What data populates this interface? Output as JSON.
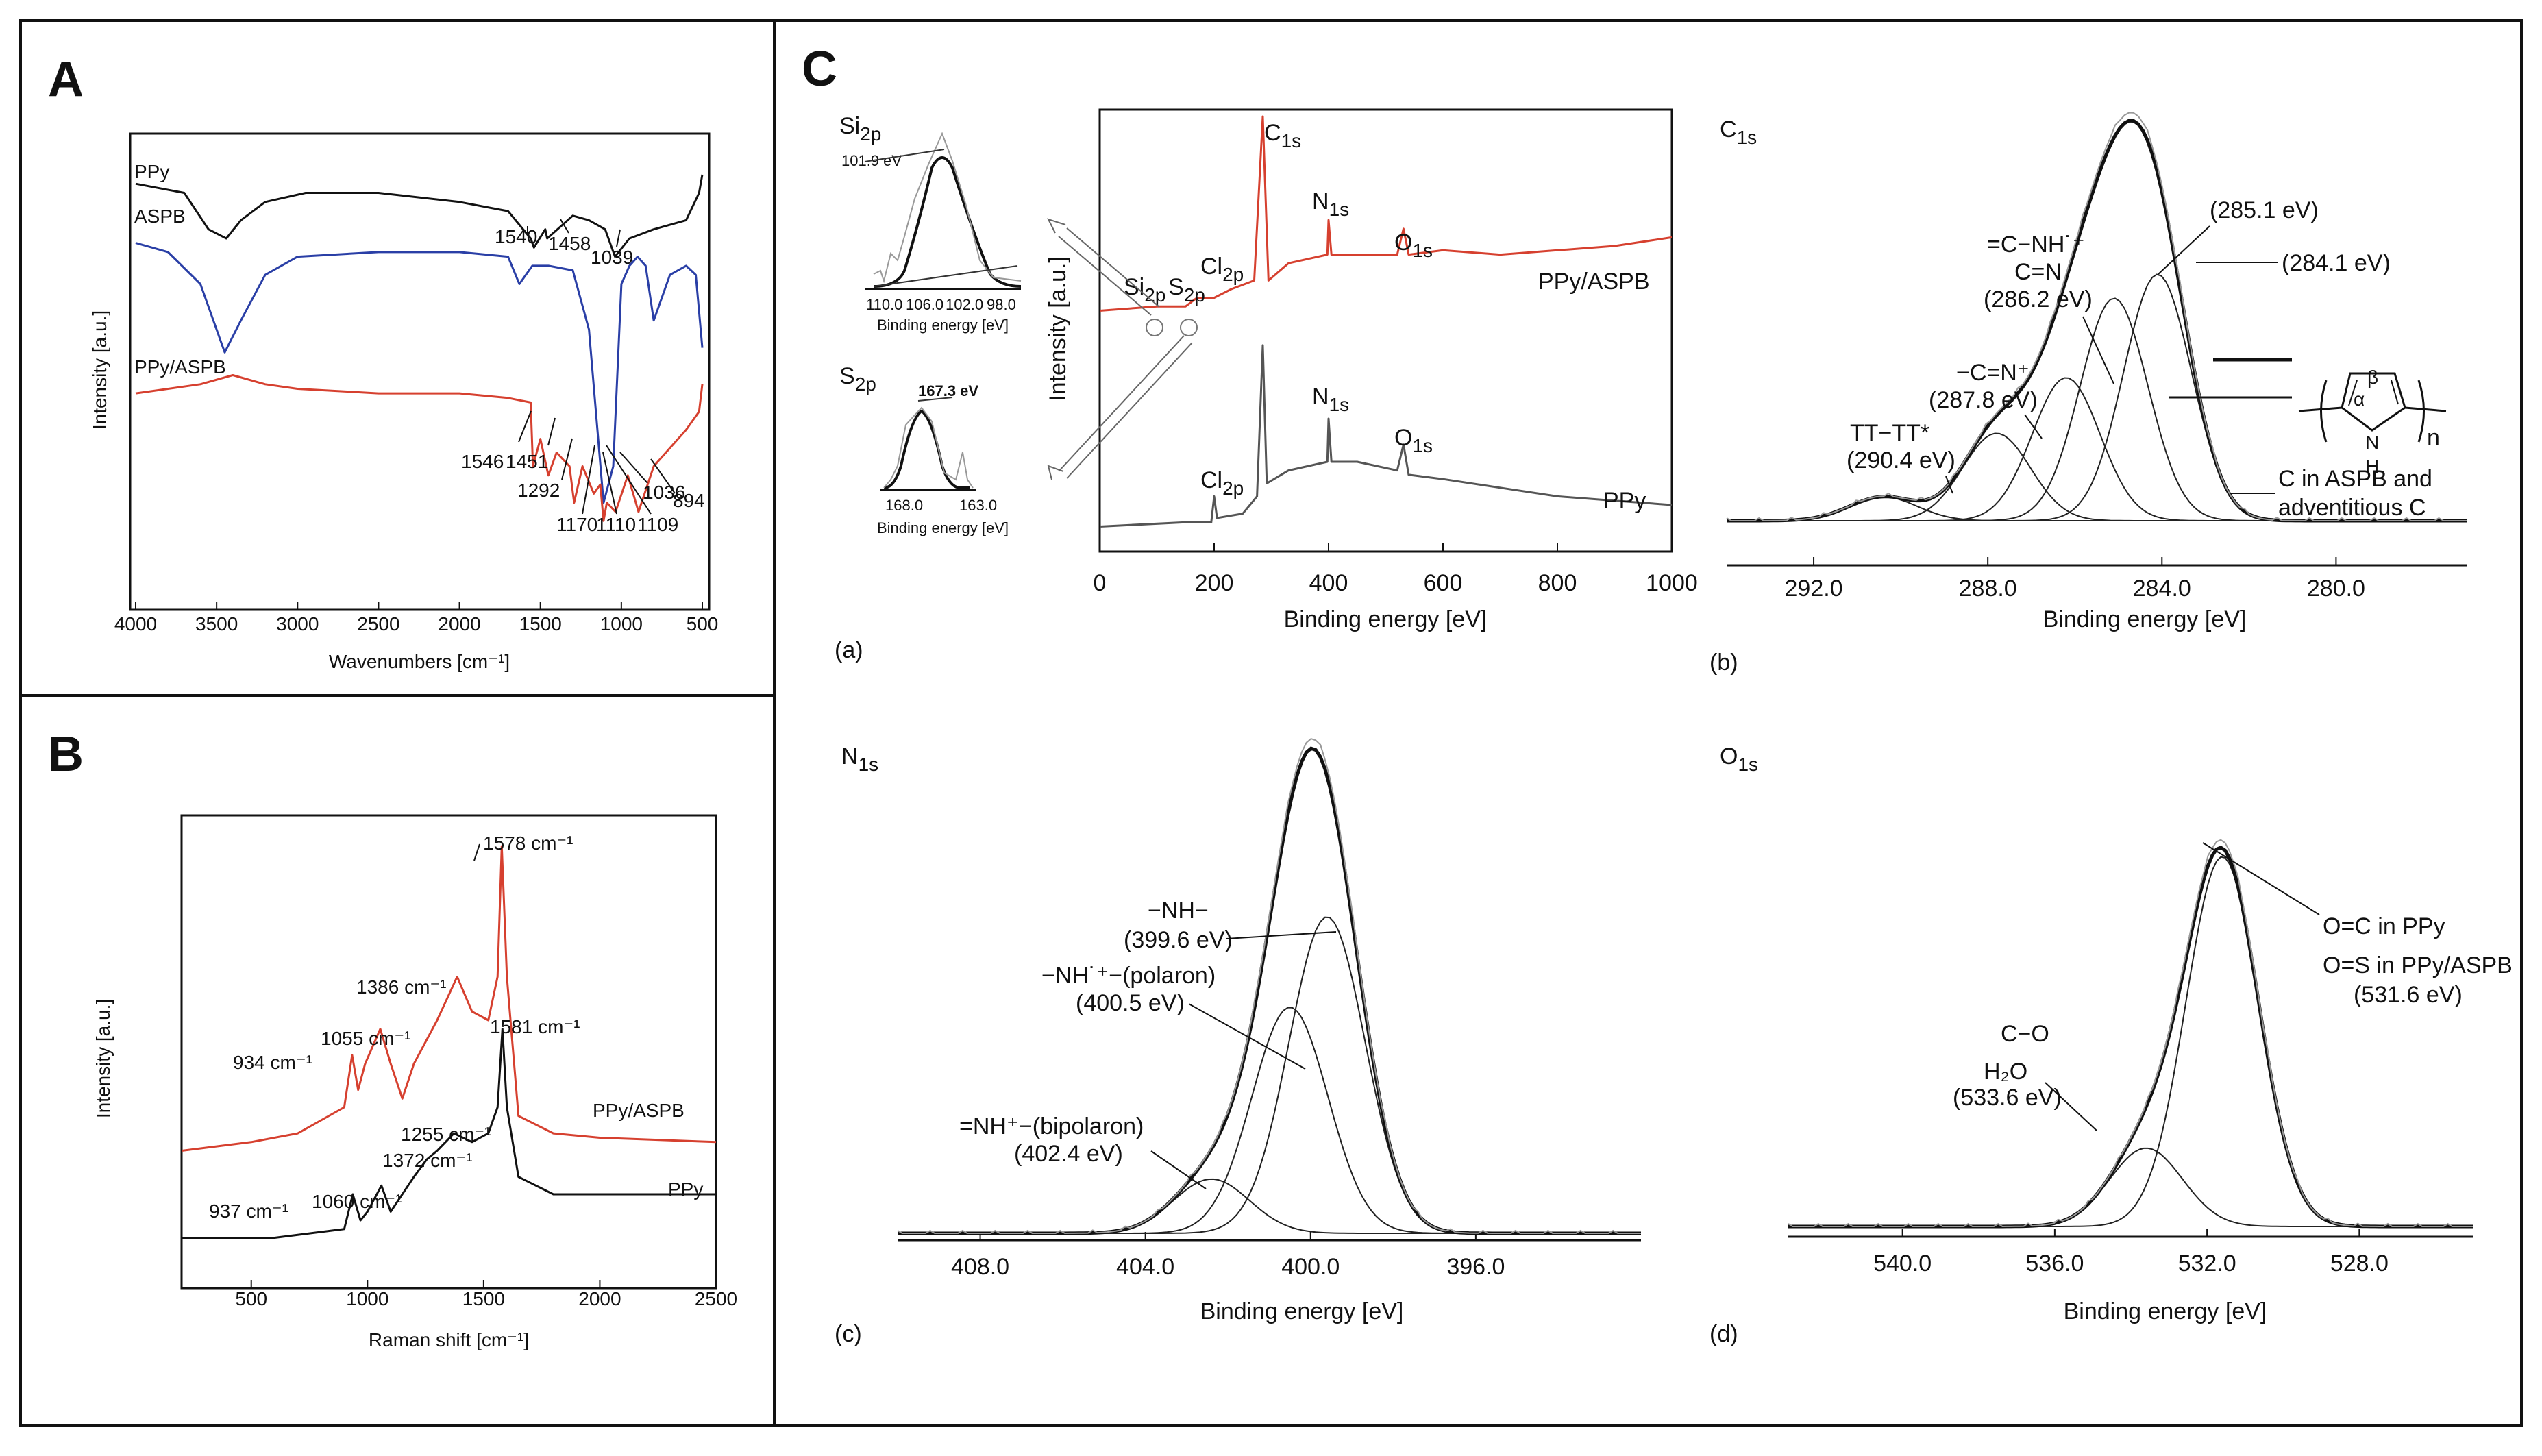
{
  "colors": {
    "black": "#111111",
    "blue": "#2a3fa6",
    "red": "#d6402f",
    "gray": "#555555",
    "lightgray": "#999999"
  },
  "panels": {
    "A": "A",
    "B": "B",
    "C": "C",
    "a": "(a)",
    "b": "(b)",
    "c": "(c)",
    "d": "(d)"
  },
  "chart_data": [
    {
      "id": "A",
      "type": "line",
      "title": "",
      "xlabel": "Wavenumbers [cm⁻¹]",
      "ylabel": "Intensity [a.u.]",
      "xlim": [
        4000,
        500
      ],
      "xticks": [
        4000,
        3500,
        3000,
        2500,
        2000,
        1500,
        1000,
        500
      ],
      "series": [
        {
          "name": "PPy",
          "color": "#111111",
          "points": [
            [
              4000,
              0.92
            ],
            [
              3700,
              0.9
            ],
            [
              3550,
              0.82
            ],
            [
              3440,
              0.8
            ],
            [
              3350,
              0.84
            ],
            [
              3200,
              0.88
            ],
            [
              2950,
              0.9
            ],
            [
              2500,
              0.9
            ],
            [
              2000,
              0.88
            ],
            [
              1700,
              0.86
            ],
            [
              1560,
              0.8
            ],
            [
              1540,
              0.78
            ],
            [
              1470,
              0.82
            ],
            [
              1458,
              0.8
            ],
            [
              1300,
              0.85
            ],
            [
              1200,
              0.84
            ],
            [
              1100,
              0.82
            ],
            [
              1039,
              0.76
            ],
            [
              950,
              0.8
            ],
            [
              800,
              0.82
            ],
            [
              600,
              0.84
            ],
            [
              520,
              0.9
            ],
            [
              500,
              0.94
            ]
          ]
        },
        {
          "name": "ASPB",
          "color": "#2a3fa6",
          "points": [
            [
              4000,
              0.79
            ],
            [
              3800,
              0.77
            ],
            [
              3600,
              0.7
            ],
            [
              3450,
              0.55
            ],
            [
              3350,
              0.62
            ],
            [
              3200,
              0.72
            ],
            [
              3000,
              0.76
            ],
            [
              2500,
              0.77
            ],
            [
              2000,
              0.77
            ],
            [
              1700,
              0.76
            ],
            [
              1630,
              0.7
            ],
            [
              1550,
              0.74
            ],
            [
              1450,
              0.74
            ],
            [
              1300,
              0.73
            ],
            [
              1200,
              0.6
            ],
            [
              1110,
              0.22
            ],
            [
              1050,
              0.3
            ],
            [
              1000,
              0.7
            ],
            [
              950,
              0.74
            ],
            [
              900,
              0.76
            ],
            [
              850,
              0.74
            ],
            [
              800,
              0.62
            ],
            [
              760,
              0.66
            ],
            [
              700,
              0.72
            ],
            [
              600,
              0.74
            ],
            [
              540,
              0.72
            ],
            [
              500,
              0.56
            ]
          ]
        },
        {
          "name": "PPy/ASPB",
          "color": "#d6402f",
          "points": [
            [
              4000,
              0.46
            ],
            [
              3600,
              0.48
            ],
            [
              3400,
              0.5
            ],
            [
              3200,
              0.48
            ],
            [
              3000,
              0.47
            ],
            [
              2500,
              0.46
            ],
            [
              2000,
              0.46
            ],
            [
              1700,
              0.45
            ],
            [
              1560,
              0.44
            ],
            [
              1546,
              0.3
            ],
            [
              1500,
              0.36
            ],
            [
              1451,
              0.28
            ],
            [
              1400,
              0.33
            ],
            [
              1320,
              0.3
            ],
            [
              1292,
              0.22
            ],
            [
              1240,
              0.3
            ],
            [
              1170,
              0.24
            ],
            [
              1130,
              0.26
            ],
            [
              1110,
              0.18
            ],
            [
              1090,
              0.22
            ],
            [
              1036,
              0.2
            ],
            [
              960,
              0.28
            ],
            [
              894,
              0.2
            ],
            [
              800,
              0.3
            ],
            [
              700,
              0.34
            ],
            [
              600,
              0.38
            ],
            [
              520,
              0.42
            ],
            [
              500,
              0.48
            ]
          ]
        }
      ],
      "labels": [
        "PPy",
        "ASPB",
        "PPy/ASPB"
      ],
      "annotations": [
        "1540",
        "1458",
        "1039",
        "1546",
        "1451",
        "1292",
        "1170",
        "1110",
        "1109",
        "1036",
        "894"
      ]
    },
    {
      "id": "B",
      "type": "line",
      "title": "",
      "xlabel": "Raman shift [cm⁻¹]",
      "ylabel": "Intensity [a.u.]",
      "xlim": [
        200,
        2500
      ],
      "xticks": [
        500,
        1000,
        1500,
        2000,
        2500
      ],
      "series": [
        {
          "name": "PPy/ASPB",
          "color": "#d6402f",
          "points": [
            [
              200,
              0.3
            ],
            [
              500,
              0.32
            ],
            [
              700,
              0.34
            ],
            [
              900,
              0.4
            ],
            [
              934,
              0.52
            ],
            [
              960,
              0.44
            ],
            [
              990,
              0.5
            ],
            [
              1055,
              0.58
            ],
            [
              1100,
              0.5
            ],
            [
              1150,
              0.42
            ],
            [
              1200,
              0.5
            ],
            [
              1300,
              0.6
            ],
            [
              1386,
              0.7
            ],
            [
              1450,
              0.62
            ],
            [
              1520,
              0.6
            ],
            [
              1560,
              0.7
            ],
            [
              1578,
              1.0
            ],
            [
              1600,
              0.7
            ],
            [
              1650,
              0.38
            ],
            [
              1800,
              0.34
            ],
            [
              2000,
              0.33
            ],
            [
              2500,
              0.32
            ]
          ]
        },
        {
          "name": "PPy",
          "color": "#111111",
          "points": [
            [
              200,
              0.1
            ],
            [
              600,
              0.1
            ],
            [
              900,
              0.12
            ],
            [
              937,
              0.2
            ],
            [
              970,
              0.14
            ],
            [
              1000,
              0.16
            ],
            [
              1060,
              0.22
            ],
            [
              1100,
              0.16
            ],
            [
              1200,
              0.24
            ],
            [
              1255,
              0.28
            ],
            [
              1300,
              0.3
            ],
            [
              1372,
              0.34
            ],
            [
              1450,
              0.32
            ],
            [
              1520,
              0.34
            ],
            [
              1560,
              0.4
            ],
            [
              1581,
              0.58
            ],
            [
              1600,
              0.4
            ],
            [
              1650,
              0.24
            ],
            [
              1800,
              0.2
            ],
            [
              2000,
              0.2
            ],
            [
              2500,
              0.2
            ]
          ]
        }
      ],
      "labels": [
        "PPy/ASPB",
        "PPy"
      ],
      "annotations": [
        "1578 cm⁻¹",
        "1386 cm⁻¹",
        "934 cm⁻¹",
        "1055 cm⁻¹",
        "1581 cm⁻¹",
        "1255 cm⁻¹",
        "1372 cm⁻¹",
        "937 cm⁻¹",
        "1060 cm⁻¹"
      ]
    },
    {
      "id": "C-a",
      "type": "line",
      "title": "",
      "xlabel": "Binding energy [eV]",
      "ylabel": "Intensity [a.u.]",
      "xlim": [
        0,
        1000
      ],
      "xticks": [
        0,
        200,
        400,
        600,
        800,
        1000
      ],
      "series": [
        {
          "name": "PPy/ASPB",
          "color": "#d6402f",
          "points": [
            [
              0,
              0.55
            ],
            [
              100,
              0.56
            ],
            [
              150,
              0.56
            ],
            [
              170,
              0.58
            ],
            [
              200,
              0.58
            ],
            [
              230,
              0.6
            ],
            [
              270,
              0.62
            ],
            [
              285,
              1.0
            ],
            [
              295,
              0.62
            ],
            [
              330,
              0.66
            ],
            [
              398,
              0.68
            ],
            [
              400,
              0.76
            ],
            [
              405,
              0.68
            ],
            [
              450,
              0.68
            ],
            [
              520,
              0.68
            ],
            [
              531,
              0.74
            ],
            [
              540,
              0.68
            ],
            [
              600,
              0.69
            ],
            [
              700,
              0.68
            ],
            [
              800,
              0.69
            ],
            [
              900,
              0.7
            ],
            [
              1000,
              0.72
            ]
          ]
        },
        {
          "name": "PPy",
          "color": "#555555",
          "points": [
            [
              0,
              0.05
            ],
            [
              150,
              0.06
            ],
            [
              195,
              0.06
            ],
            [
              200,
              0.12
            ],
            [
              205,
              0.07
            ],
            [
              250,
              0.08
            ],
            [
              275,
              0.12
            ],
            [
              285,
              0.47
            ],
            [
              292,
              0.15
            ],
            [
              330,
              0.18
            ],
            [
              398,
              0.2
            ],
            [
              400,
              0.3
            ],
            [
              405,
              0.2
            ],
            [
              450,
              0.2
            ],
            [
              520,
              0.18
            ],
            [
              531,
              0.24
            ],
            [
              540,
              0.17
            ],
            [
              600,
              0.16
            ],
            [
              700,
              0.14
            ],
            [
              800,
              0.12
            ],
            [
              900,
              0.11
            ],
            [
              1000,
              0.1
            ]
          ]
        }
      ],
      "peak_labels": [
        "C₁ₛ",
        "N₁ₛ",
        "O₁ₛ",
        "Cl₂ₚ",
        "Si₂ₚ",
        "S₂ₚ"
      ],
      "labels": [
        "PPy/ASPB",
        "PPy"
      ],
      "insets": [
        {
          "element": "Si2p",
          "peak": "101.9 eV",
          "xticks": [
            "110.0",
            "106.0",
            "102.0",
            "98.0"
          ],
          "xlabel": "Binding energy [eV]"
        },
        {
          "element": "S2p",
          "peak": "167.3 eV",
          "xticks": [
            "168.0",
            "163.0"
          ],
          "xlabel": "Binding energy [eV]"
        }
      ]
    },
    {
      "id": "C-b",
      "type": "line",
      "title": "C1s",
      "xlabel": "Binding energy [eV]",
      "xlim": [
        294,
        277
      ],
      "xticks": [
        292.0,
        288.0,
        284.0,
        280.0
      ],
      "peaks": [
        {
          "label": "(284.1 eV)",
          "center": 284.1,
          "height": 0.62
        },
        {
          "label": "(285.1 eV)",
          "center": 285.1,
          "height": 0.56
        },
        {
          "label": "=C−NH˙⁺ C=N (286.2 eV)",
          "center": 286.2,
          "height": 0.36
        },
        {
          "label": "−C=N⁺ (287.8 eV)",
          "center": 287.8,
          "height": 0.22
        },
        {
          "label": "TT−TT* (290.4 eV)",
          "center": 290.4,
          "height": 0.06
        }
      ],
      "annotations": [
        "C in ASPB and",
        "adventitious C",
        "β",
        "α",
        "N",
        "H",
        "n"
      ]
    },
    {
      "id": "C-c",
      "type": "line",
      "title": "N1s",
      "xlabel": "Binding energy [eV]",
      "xlim": [
        410,
        392
      ],
      "xticks": [
        408.0,
        404.0,
        400.0,
        396.0
      ],
      "peaks": [
        {
          "label": "−NH− (399.6 eV)",
          "center": 399.6,
          "height": 0.7
        },
        {
          "label": "−NH˙⁺−(polaron) (400.5 eV)",
          "center": 400.5,
          "height": 0.5
        },
        {
          "label": "=NH⁺−(bipolaron) (402.4 eV)",
          "center": 402.4,
          "height": 0.12
        }
      ]
    },
    {
      "id": "C-d",
      "type": "line",
      "title": "O1s",
      "xlabel": "Binding energy [eV]",
      "xlim": [
        543,
        525
      ],
      "xticks": [
        540.0,
        536.0,
        532.0,
        528.0
      ],
      "peaks": [
        {
          "label": "O=C in PPy O=S in PPy/ASPB (531.6 eV)",
          "center": 531.6,
          "height": 0.85
        },
        {
          "label": "C−O H₂O (533.6 eV)",
          "center": 533.6,
          "height": 0.18
        }
      ]
    }
  ],
  "text": {
    "A": {
      "ppy": "PPy",
      "aspb": "ASPB",
      "ppyaspb": "PPy/ASPB",
      "ylabel": "Intensity [a.u.]",
      "xlabel": "Wavenumbers [cm⁻¹]",
      "a1540": "1540",
      "a1458": "1458",
      "a1039": "1039",
      "a1546": "1546",
      "a1451": "1451",
      "a1292": "1292",
      "a1170": "1170",
      "a1110": "1110",
      "a1109": "1109",
      "a1036": "1036",
      "a894": "894"
    },
    "B": {
      "ylabel": "Intensity [a.u.]",
      "xlabel": "Raman shift [cm⁻¹]",
      "ppyaspb": "PPy/ASPB",
      "ppy": "PPy",
      "a1578": "1578 cm⁻¹",
      "a1386": "1386 cm⁻¹",
      "a934": "934 cm⁻¹",
      "a1055": "1055 cm⁻¹",
      "a1581": "1581 cm⁻¹",
      "a1255": "1255 cm⁻¹",
      "a1372": "1372 cm⁻¹",
      "a937": "937 cm⁻¹",
      "a1060": "1060 cm⁻¹"
    },
    "Ca": {
      "ylabel": "Intensity [a.u.]",
      "xlabel": "Binding energy [eV]",
      "ppyaspb": "PPy/ASPB",
      "ppy": "PPy",
      "C": "C",
      "N": "N",
      "O": "O",
      "Cl": "Cl",
      "Si": "Si",
      "S": "S",
      "s1": "1s",
      "p2": "2p",
      "si_peak": "101.9 eV",
      "si_t1": "110.0",
      "si_t2": "106.0",
      "si_t3": "102.0",
      "si_t4": "98.0",
      "si_x": "Binding energy [eV]",
      "s_peak": "167.3 eV",
      "s_t1": "168.0",
      "s_t2": "163.0",
      "s_x": "Binding energy [eV]"
    },
    "Cb": {
      "title_main": "C",
      "title_sub": "1s",
      "xlabel": "Binding energy [eV]",
      "p2851": "(285.1 eV)",
      "p2841": "(284.1 eV)",
      "cnh": "=C−NH˙⁺",
      "cn": "C=N",
      "p2862": "(286.2 eV)",
      "ccn": "−C=N⁺",
      "p2878": "(287.8 eV)",
      "tt": "TT−TT*",
      "p2904": "(290.4 eV)",
      "aspb1": "C in ASPB and",
      "aspb2": "adventitious C",
      "beta": "β",
      "alpha": "α",
      "N": "N",
      "H": "H",
      "n": "n"
    },
    "Cc": {
      "title_main": "N",
      "title_sub": "1s",
      "xlabel": "Binding energy [eV]",
      "nh": "−NH−",
      "p3996": "(399.6 eV)",
      "pol": "−NH˙⁺−(polaron)",
      "p4005": "(400.5 eV)",
      "bip": "=NH⁺−(bipolaron)",
      "p4024": "(402.4 eV)"
    },
    "Cd": {
      "title_main": "O",
      "title_sub": "1s",
      "xlabel": "Binding energy [eV]",
      "oc": "O=C in PPy",
      "os": "O=S in PPy/ASPB",
      "p5316": "(531.6 eV)",
      "co": "C−O",
      "h2o": "H₂O",
      "p5336": "(533.6 eV)"
    }
  }
}
